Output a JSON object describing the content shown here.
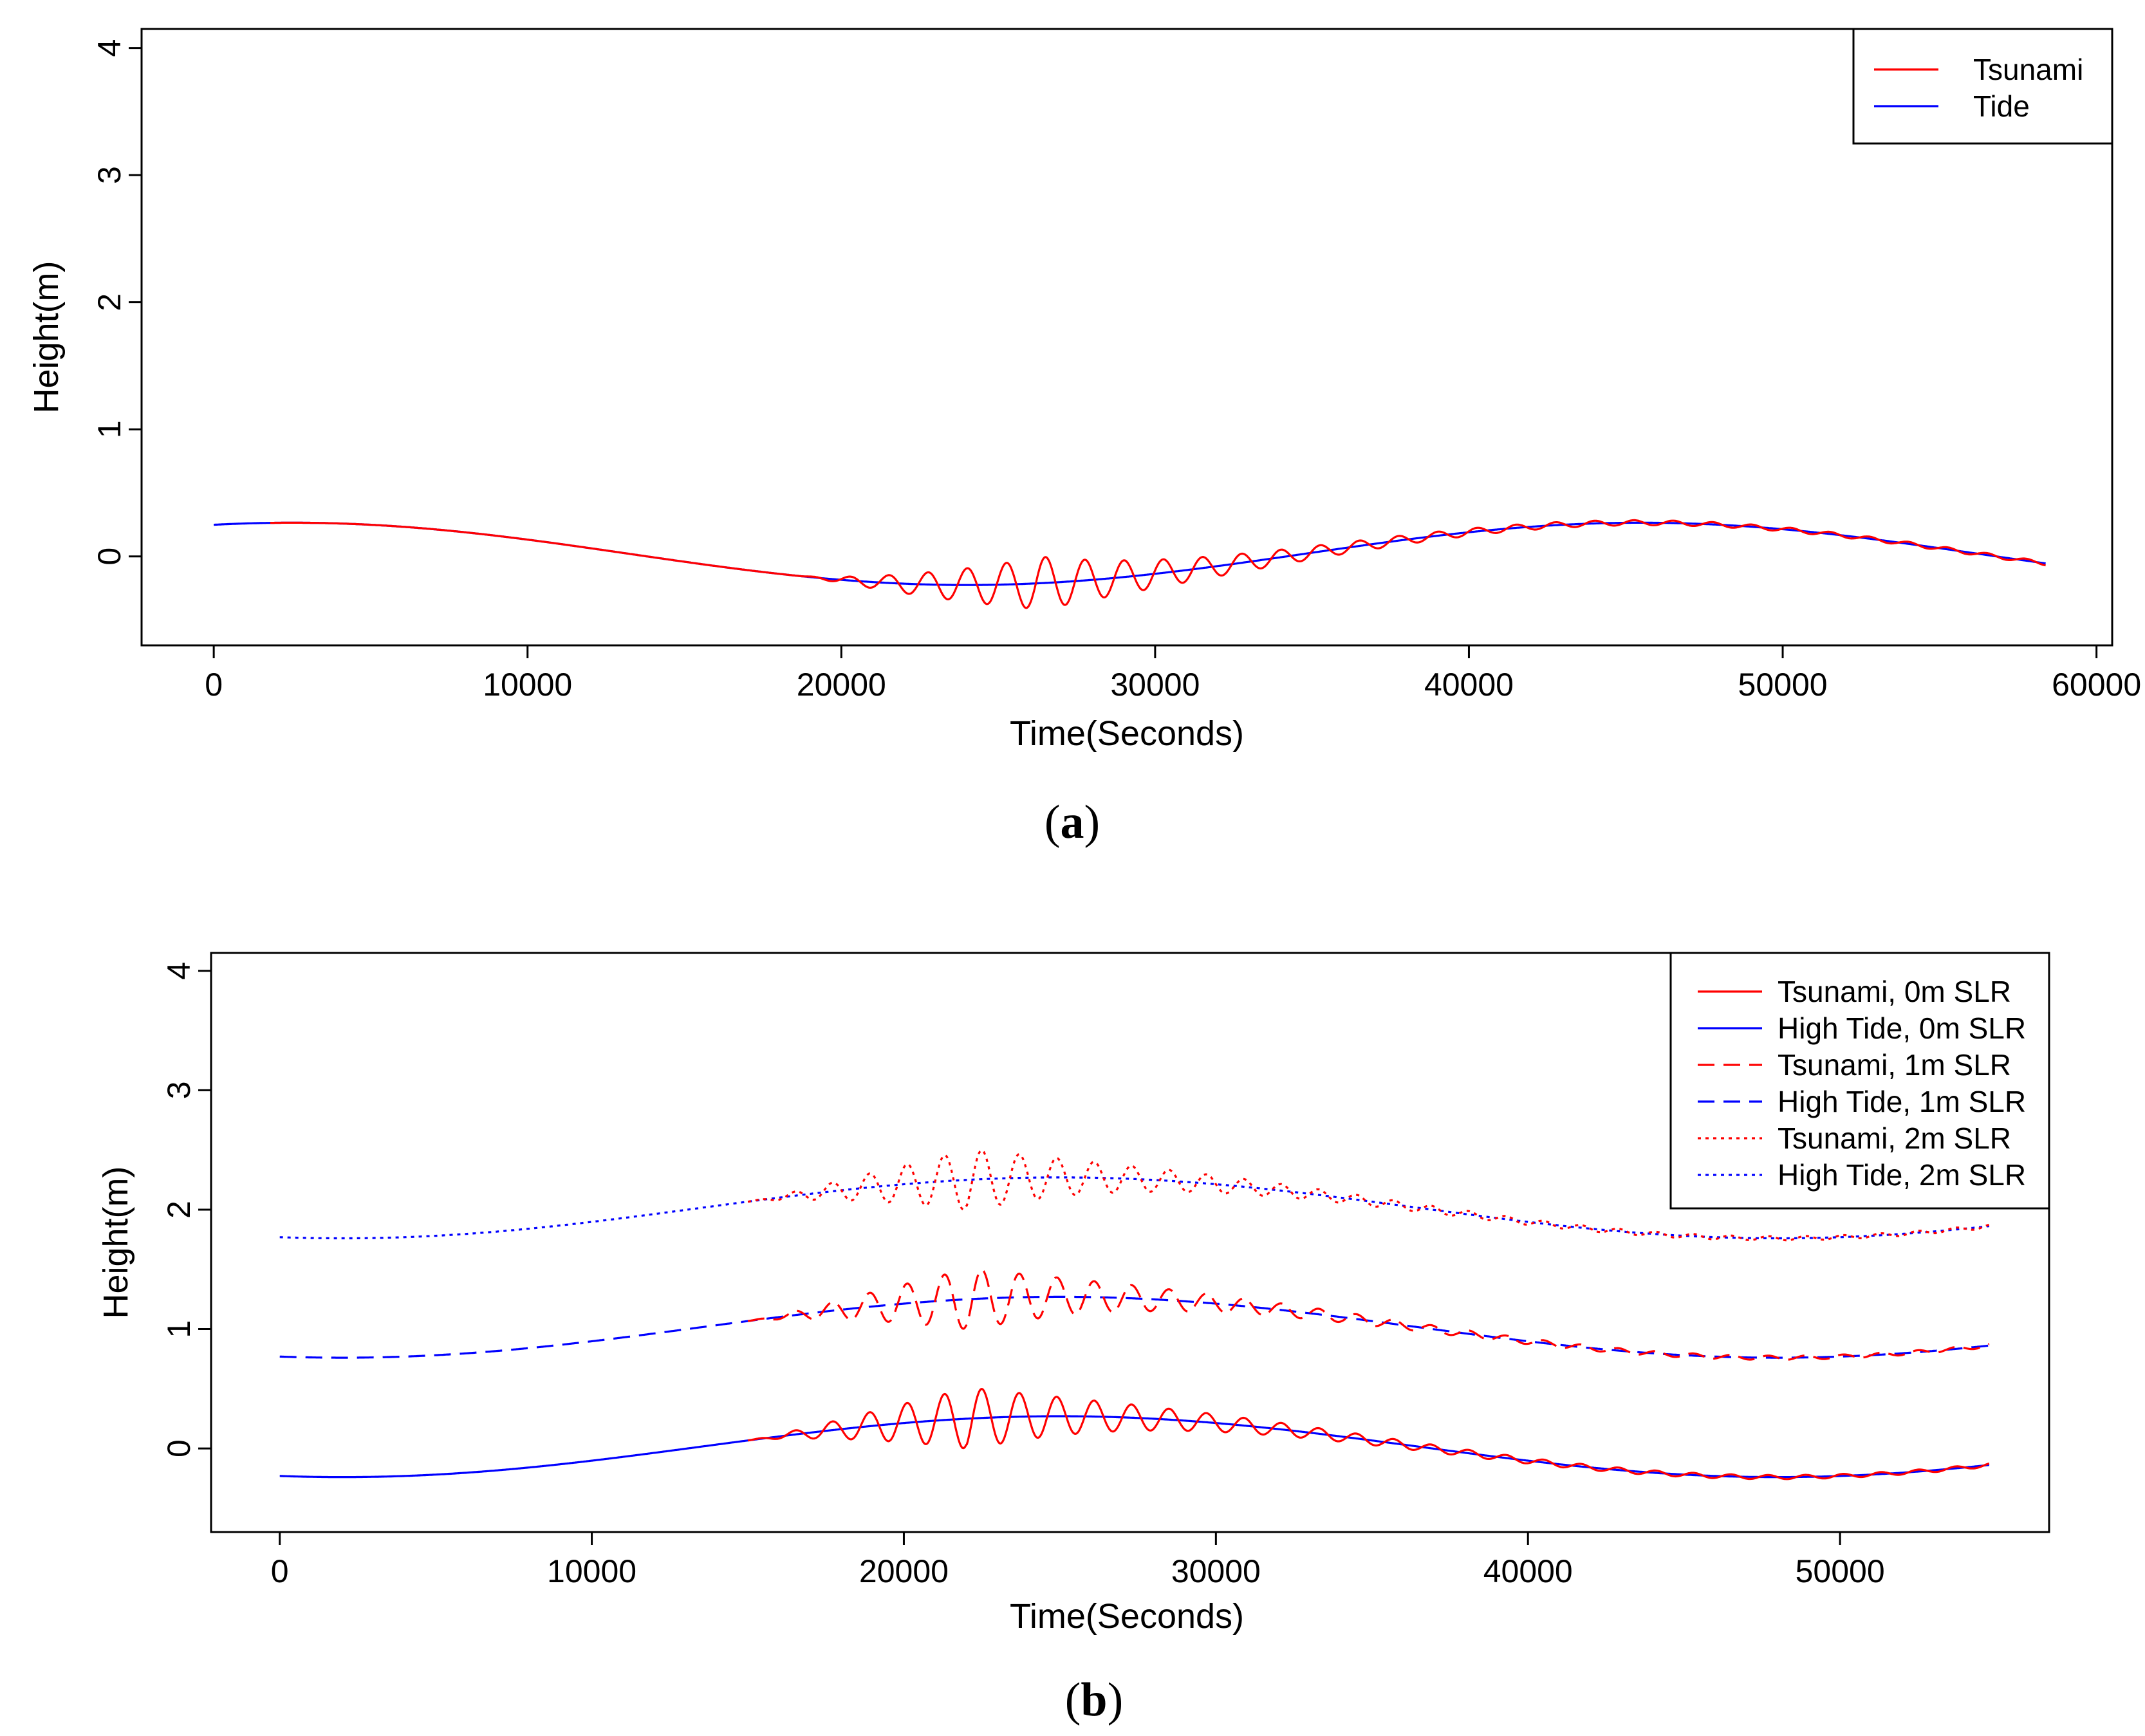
{
  "chart_data": [
    {
      "id": "a",
      "type": "line",
      "caption": {
        "open": "(",
        "letter": "a",
        "close": ")"
      },
      "xlabel": "Time(Seconds)",
      "ylabel": "Height(m)",
      "xlim": [
        -2300,
        60500
      ],
      "ylim": [
        -0.7,
        4.15
      ],
      "xticks": [
        0,
        10000,
        20000,
        30000,
        40000,
        50000,
        60000
      ],
      "xtick_labels": [
        "0",
        "10000",
        "20000",
        "30000",
        "40000",
        "50000",
        "60000"
      ],
      "yticks": [
        0,
        1,
        2,
        3,
        4
      ],
      "ytick_labels": [
        "0",
        "1",
        "2",
        "3",
        "4"
      ],
      "legend": {
        "position": "top-right",
        "entries": [
          {
            "label": "Tsunami",
            "color": "#ff0000",
            "dash": "solid"
          },
          {
            "label": "Tide",
            "color": "#0000ff",
            "dash": "solid"
          }
        ]
      },
      "series": [
        {
          "name": "Tide",
          "color": "#0000ff",
          "dash": "solid",
          "model": "tide_a",
          "x_range": [
            0,
            58400
          ],
          "sampled_values": [
            [
              0,
              0.18
            ],
            [
              10000,
              0.02
            ],
            [
              20000,
              -0.21
            ],
            [
              26000,
              -0.21
            ],
            [
              30000,
              -0.16
            ],
            [
              40000,
              0.18
            ],
            [
              46000,
              0.27
            ],
            [
              50000,
              0.24
            ],
            [
              58400,
              -0.01
            ]
          ]
        },
        {
          "name": "Tsunami",
          "color": "#ff0000",
          "dash": "solid",
          "model": "tsunami_a",
          "x_range": [
            1800,
            58400
          ],
          "onset": 18700,
          "peak_amplitude": 0.2,
          "period_s": 1250,
          "sampled_values": [
            [
              20800,
              -0.36
            ],
            [
              24500,
              -0.35
            ],
            [
              26000,
              -0.02
            ],
            [
              26300,
              -0.38
            ],
            [
              30000,
              -0.07
            ],
            [
              40000,
              0.2
            ],
            [
              45800,
              0.3
            ],
            [
              50000,
              0.27
            ]
          ]
        }
      ]
    },
    {
      "id": "b",
      "type": "line",
      "caption": {
        "open": "(",
        "letter": "b",
        "close": ")"
      },
      "xlabel": "Time(Seconds)",
      "ylabel": "Height(m)",
      "xlim": [
        -2200,
        56700
      ],
      "ylim": [
        -0.7,
        4.15
      ],
      "xticks": [
        0,
        10000,
        20000,
        30000,
        40000,
        50000
      ],
      "xtick_labels": [
        "0",
        "10000",
        "20000",
        "30000",
        "40000",
        "50000"
      ],
      "yticks": [
        0,
        1,
        2,
        3,
        4
      ],
      "ytick_labels": [
        "0",
        "1",
        "2",
        "3",
        "4"
      ],
      "legend": {
        "position": "top-right",
        "entries": [
          {
            "label": "Tsunami, 0m SLR",
            "color": "#ff0000",
            "dash": "solid"
          },
          {
            "label": "High Tide, 0m SLR",
            "color": "#0000ff",
            "dash": "solid"
          },
          {
            "label": "Tsunami, 1m SLR",
            "color": "#ff0000",
            "dash": "dashed"
          },
          {
            "label": "High Tide, 1m SLR",
            "color": "#0000ff",
            "dash": "dashed"
          },
          {
            "label": "Tsunami, 2m SLR",
            "color": "#ff0000",
            "dash": "dotted"
          },
          {
            "label": "High Tide, 2m SLR",
            "color": "#0000ff",
            "dash": "dotted"
          }
        ]
      },
      "series": [
        {
          "name": "High Tide, 0m SLR",
          "color": "#0000ff",
          "dash": "solid",
          "model": "tide_b",
          "offset": 0,
          "x_range": [
            0,
            54800
          ],
          "sampled_values": [
            [
              0,
              -0.22
            ],
            [
              10000,
              -0.06
            ],
            [
              20000,
              0.22
            ],
            [
              25000,
              0.27
            ],
            [
              30000,
              0.2
            ],
            [
              40000,
              -0.1
            ],
            [
              48000,
              -0.24
            ],
            [
              54800,
              -0.16
            ]
          ]
        },
        {
          "name": "Tsunami, 0m SLR",
          "color": "#ff0000",
          "dash": "solid",
          "model": "tsunami_b",
          "offset": 0,
          "x_range": [
            15000,
            54800
          ],
          "onset": 15000,
          "peak_amplitude": 0.25,
          "period_s": 1200,
          "sampled_values": [
            [
              22000,
              0.51
            ],
            [
              22600,
              0.01
            ],
            [
              30000,
              0.22
            ],
            [
              47000,
              -0.28
            ]
          ]
        },
        {
          "name": "High Tide, 1m SLR",
          "color": "#0000ff",
          "dash": "dashed",
          "model": "tide_b",
          "offset": 1,
          "x_range": [
            0,
            54800
          ],
          "sampled_values": [
            [
              0,
              0.78
            ],
            [
              10000,
              0.94
            ],
            [
              20000,
              1.22
            ],
            [
              25000,
              1.27
            ],
            [
              40000,
              0.9
            ],
            [
              48000,
              0.76
            ],
            [
              54800,
              0.84
            ]
          ]
        },
        {
          "name": "Tsunami, 1m SLR",
          "color": "#ff0000",
          "dash": "dashed",
          "model": "tsunami_b",
          "offset": 1,
          "x_range": [
            15000,
            54800
          ],
          "onset": 15000,
          "peak_amplitude": 0.25,
          "period_s": 1200,
          "sampled_values": [
            [
              22000,
              1.51
            ],
            [
              22600,
              1.01
            ],
            [
              47000,
              0.72
            ]
          ]
        },
        {
          "name": "High Tide, 2m SLR",
          "color": "#0000ff",
          "dash": "dotted",
          "model": "tide_b",
          "offset": 2,
          "x_range": [
            0,
            54800
          ],
          "sampled_values": [
            [
              0,
              1.78
            ],
            [
              10000,
              1.94
            ],
            [
              20000,
              2.22
            ],
            [
              25000,
              2.27
            ],
            [
              40000,
              1.9
            ],
            [
              48000,
              1.76
            ],
            [
              54800,
              1.84
            ]
          ]
        },
        {
          "name": "Tsunami, 2m SLR",
          "color": "#ff0000",
          "dash": "dotted",
          "model": "tsunami_b",
          "offset": 2,
          "x_range": [
            15000,
            54800
          ],
          "onset": 15000,
          "peak_amplitude": 0.25,
          "period_s": 1200,
          "sampled_values": [
            [
              22000,
              2.52
            ],
            [
              22600,
              2.01
            ],
            [
              47000,
              1.72
            ]
          ]
        }
      ]
    }
  ]
}
